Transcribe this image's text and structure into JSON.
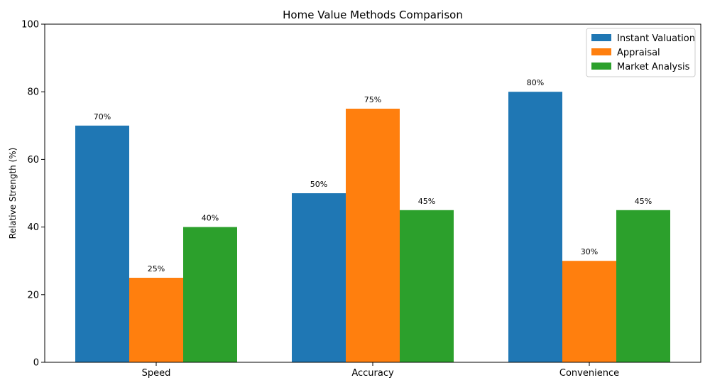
{
  "chart_data": {
    "type": "bar",
    "title": "Home Value Methods Comparison",
    "xlabel": "",
    "ylabel": "Relative Strength (%)",
    "ylim": [
      0,
      100
    ],
    "yticks": [
      0,
      20,
      40,
      60,
      80,
      100
    ],
    "grid": false,
    "legend_position": "top-right",
    "categories": [
      "Speed",
      "Accuracy",
      "Convenience"
    ],
    "series": [
      {
        "name": "Instant Valuation",
        "color": "#1f77b4",
        "values": [
          70,
          50,
          80
        ],
        "labels": [
          "70%",
          "50%",
          "80%"
        ]
      },
      {
        "name": "Appraisal",
        "color": "#ff7f0e",
        "values": [
          25,
          75,
          30
        ],
        "labels": [
          "25%",
          "75%",
          "30%"
        ]
      },
      {
        "name": "Market Analysis",
        "color": "#2ca02c",
        "values": [
          40,
          45,
          45
        ],
        "labels": [
          "40%",
          "45%",
          "45%"
        ]
      }
    ]
  }
}
